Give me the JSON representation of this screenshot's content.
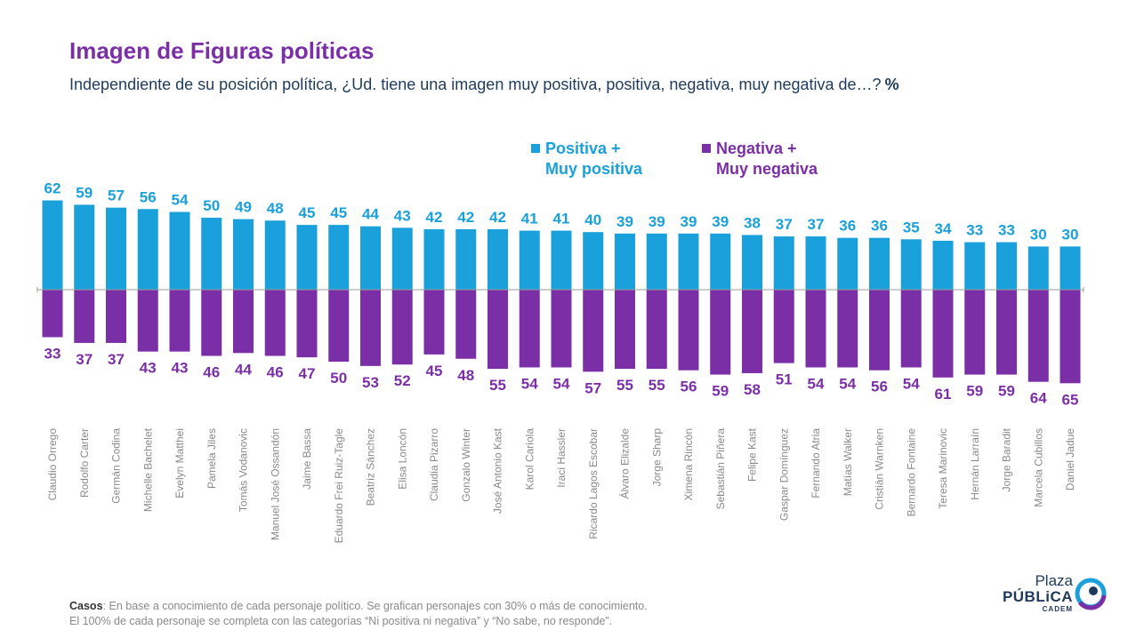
{
  "header": {
    "title": "Imagen de Figuras políticas",
    "subtitle": "Independiente de su posición política, ¿Ud. tiene una imagen muy positiva, positiva, negativa, muy negativa de…?",
    "unit": "%"
  },
  "legend": {
    "positive_line1": "Positiva +",
    "positive_line2": "Muy positiva",
    "negative_line1": "Negativa +",
    "negative_line2": "Muy negativa"
  },
  "colors": {
    "positive": "#1aa0db",
    "negative": "#7b2fa6",
    "title": "#7b2fa6",
    "label_text": "#8a8a8a"
  },
  "chart_data": {
    "type": "bar",
    "orientation": "diverging-vertical",
    "categories": [
      "Claudio Orrego",
      "Rodolfo Carter",
      "Germán Codina",
      "Michelle Bachelet",
      "Evelyn Matthei",
      "Pamela Jiles",
      "Tomás Vodanovic",
      "Manuel José Ossandón",
      "Jaime Bassa",
      "Eduardo Frei Ruiz-Tagle",
      "Beatriz Sánchez",
      "Elisa Loncón",
      "Claudia Pizarro",
      "Gonzalo Winter",
      "José Antonio Kast",
      "Karol Cariola",
      "Iraci Hassler",
      "Ricardo Lagos Escobar",
      "Álvaro Elizalde",
      "Jorge Sharp",
      "Ximena Rincón",
      "Sebastián Piñera",
      "Felipe Kast",
      "Gaspar Domínguez",
      "Fernando Atria",
      "Matías Walker",
      "Cristián Warnken",
      "Bernardo Fontaine",
      "Teresa Marinovic",
      "Hernán Larraín",
      "Jorge Baradit",
      "Marcela Cubillos",
      "Daniel Jadue"
    ],
    "series": [
      {
        "name": "Positiva + Muy positiva",
        "values": [
          62,
          59,
          57,
          56,
          54,
          50,
          49,
          48,
          45,
          45,
          44,
          43,
          42,
          42,
          42,
          41,
          41,
          40,
          39,
          39,
          39,
          39,
          38,
          37,
          37,
          36,
          36,
          35,
          34,
          33,
          33,
          30,
          30
        ]
      },
      {
        "name": "Negativa + Muy negativa",
        "values": [
          33,
          37,
          37,
          43,
          43,
          46,
          44,
          46,
          47,
          50,
          53,
          52,
          45,
          48,
          55,
          54,
          54,
          57,
          55,
          55,
          56,
          59,
          58,
          51,
          54,
          54,
          56,
          54,
          61,
          59,
          59,
          64,
          65
        ]
      }
    ],
    "title": "Imagen de Figuras políticas",
    "legend_position": "top-center",
    "grid": false
  },
  "footer": {
    "casos_label": "Casos",
    "line1": ": En base a conocimiento de cada personaje político. Se grafican personajes con 30% o más de conocimiento.",
    "line2": "El 100% de cada personaje se completa con las categorías “Ni positiva ni negativa” y “No sabe, no responde”."
  },
  "logo": {
    "line1": "Plaza",
    "line2": "PÚBLiCA",
    "line3": "CADEM"
  }
}
